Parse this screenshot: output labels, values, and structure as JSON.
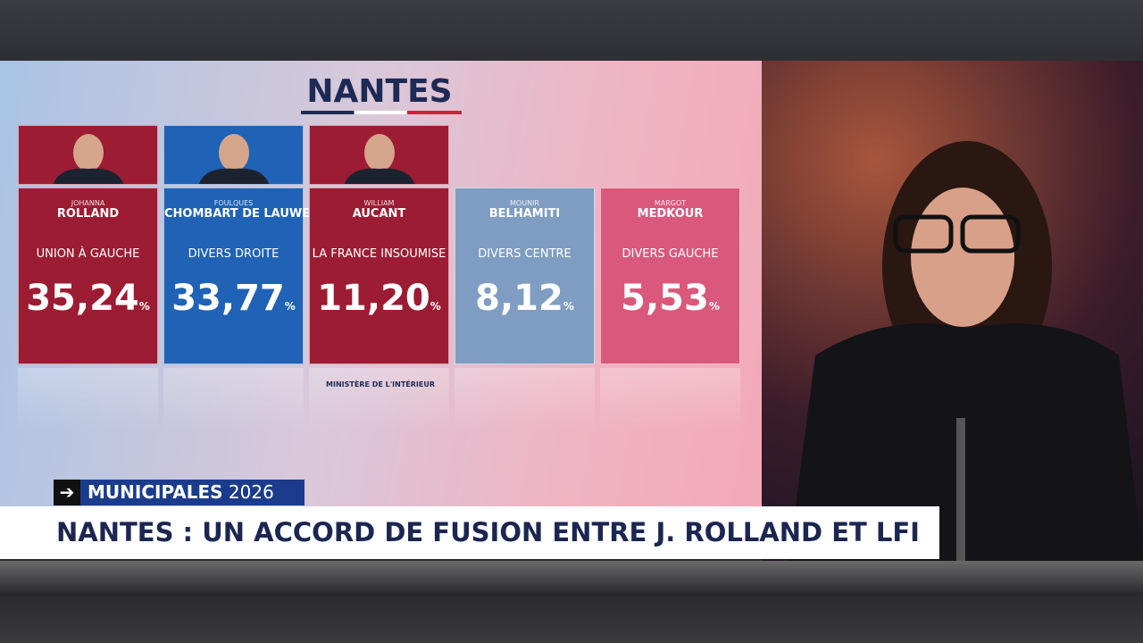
{
  "header": {
    "title": "NANTES"
  },
  "candidates": [
    {
      "first_name": "JOHANNA",
      "last_name": "ROLLAND",
      "party": "UNION À GAUCHE",
      "score": "35,24",
      "unit": "%",
      "color": "#9c1c33",
      "photo": true
    },
    {
      "first_name": "FOULQUES",
      "last_name": "CHOMBART DE LAUWE",
      "party": "DIVERS DROITE",
      "score": "33,77",
      "unit": "%",
      "color": "#1f62b6",
      "photo": true
    },
    {
      "first_name": "WILLIAM",
      "last_name": "AUCANT",
      "party": "LA FRANCE INSOUMISE",
      "score": "11,20",
      "unit": "%",
      "color": "#9c1c33",
      "photo": true
    },
    {
      "first_name": "MOUNIR",
      "last_name": "BELHAMITI",
      "party": "DIVERS CENTRE",
      "score": "8,12",
      "unit": "%",
      "color": "#7f9dc2",
      "photo": false
    },
    {
      "first_name": "MARGOT",
      "last_name": "MEDKOUR",
      "party": "DIVERS GAUCHE",
      "score": "5,53",
      "unit": "%",
      "color": "#d9587c",
      "photo": false
    }
  ],
  "source": "MINISTÈRE DE L'INTÉRIEUR",
  "banner": {
    "label": "MUNICIPALES",
    "year": "2026"
  },
  "headline": "NANTES : UN ACCORD DE FUSION ENTRE J. ROLLAND ET LFI"
}
